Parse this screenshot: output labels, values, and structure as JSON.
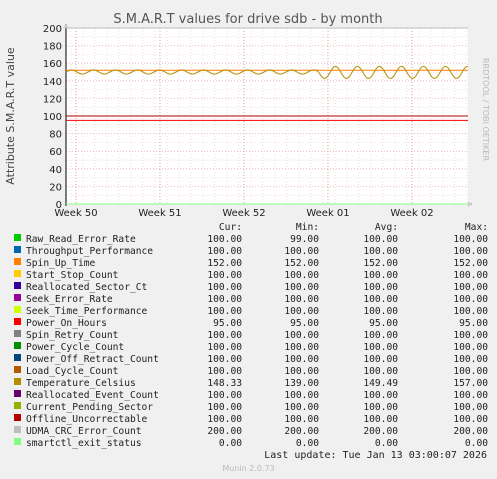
{
  "chart_data": {
    "type": "line",
    "title": "S.M.A.R.T values for drive sdb - by month",
    "ylabel": "Attribute S.M.A.R.T value",
    "ylim": [
      0,
      200
    ],
    "yticks": [
      0,
      20,
      40,
      60,
      80,
      100,
      120,
      140,
      160,
      180,
      200
    ],
    "xticks": [
      "Week 50",
      "Week 51",
      "Week 52",
      "Week 01",
      "Week 02"
    ],
    "grid": true,
    "legend_position": "bottom",
    "columns": [
      "Cur:",
      "Min:",
      "Avg:",
      "Max:"
    ],
    "series": [
      {
        "name": "Raw_Read_Error_Rate",
        "color": "#00cc00",
        "cur": "100.00",
        "min": "99.00",
        "avg": "100.00",
        "max": "100.00"
      },
      {
        "name": "Throughput_Performance",
        "color": "#0066b3",
        "cur": "100.00",
        "min": "100.00",
        "avg": "100.00",
        "max": "100.00"
      },
      {
        "name": "Spin_Up_Time",
        "color": "#ff8000",
        "cur": "152.00",
        "min": "152.00",
        "avg": "152.00",
        "max": "152.00"
      },
      {
        "name": "Start_Stop_Count",
        "color": "#ffcc00",
        "cur": "100.00",
        "min": "100.00",
        "avg": "100.00",
        "max": "100.00"
      },
      {
        "name": "Reallocated_Sector_Ct",
        "color": "#330099",
        "cur": "100.00",
        "min": "100.00",
        "avg": "100.00",
        "max": "100.00"
      },
      {
        "name": "Seek_Error_Rate",
        "color": "#990099",
        "cur": "100.00",
        "min": "100.00",
        "avg": "100.00",
        "max": "100.00"
      },
      {
        "name": "Seek_Time_Performance",
        "color": "#ccff00",
        "cur": "100.00",
        "min": "100.00",
        "avg": "100.00",
        "max": "100.00"
      },
      {
        "name": "Power_On_Hours",
        "color": "#ff0000",
        "cur": "95.00",
        "min": "95.00",
        "avg": "95.00",
        "max": "95.00"
      },
      {
        "name": "Spin_Retry_Count",
        "color": "#808080",
        "cur": "100.00",
        "min": "100.00",
        "avg": "100.00",
        "max": "100.00"
      },
      {
        "name": "Power_Cycle_Count",
        "color": "#008f00",
        "cur": "100.00",
        "min": "100.00",
        "avg": "100.00",
        "max": "100.00"
      },
      {
        "name": "Power_Off_Retract_Count",
        "color": "#00487d",
        "cur": "100.00",
        "min": "100.00",
        "avg": "100.00",
        "max": "100.00"
      },
      {
        "name": "Load_Cycle_Count",
        "color": "#b35a00",
        "cur": "100.00",
        "min": "100.00",
        "avg": "100.00",
        "max": "100.00"
      },
      {
        "name": "Temperature_Celsius",
        "color": "#b38f00",
        "cur": "148.33",
        "min": "139.00",
        "avg": "149.49",
        "max": "157.00"
      },
      {
        "name": "Reallocated_Event_Count",
        "color": "#6b006b",
        "cur": "100.00",
        "min": "100.00",
        "avg": "100.00",
        "max": "100.00"
      },
      {
        "name": "Current_Pending_Sector",
        "color": "#8fb300",
        "cur": "100.00",
        "min": "100.00",
        "avg": "100.00",
        "max": "100.00"
      },
      {
        "name": "Offline_Uncorrectable",
        "color": "#b30000",
        "cur": "100.00",
        "min": "100.00",
        "avg": "100.00",
        "max": "100.00"
      },
      {
        "name": "UDMA_CRC_Error_Count",
        "color": "#bebebe",
        "cur": "200.00",
        "min": "200.00",
        "avg": "200.00",
        "max": "200.00"
      },
      {
        "name": "smartctl_exit_status",
        "color": "#80ff80",
        "cur": "0.00",
        "min": "0.00",
        "avg": "0.00",
        "max": "0.00"
      }
    ]
  },
  "side_label": "RRDTOOL / TOBI OETIKER",
  "last_update": "Last update: Tue Jan 13 03:00:07 2026",
  "footer": "Munin 2.0.73"
}
